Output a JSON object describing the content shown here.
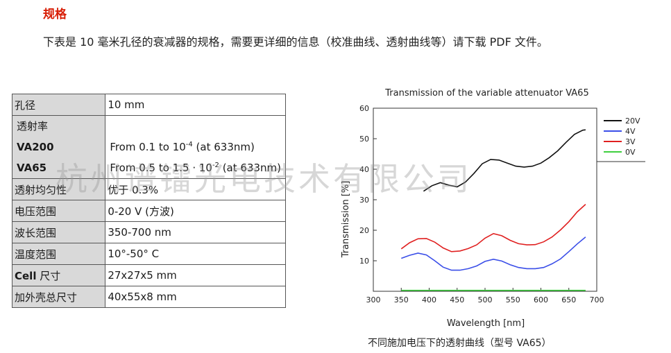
{
  "heading": "规格",
  "intro": "下表是 10 毫米孔径的衰减器的规格，需要更详细的信息（校准曲线、透射曲线等）请下载 PDF 文件。",
  "table": {
    "aperture_label": "孔径",
    "aperture_value": "10 mm",
    "transmission_label": "透射率",
    "va200_label": "VA200",
    "va200_value_prefix": "From 0.1 to 10",
    "va200_value_exp": "-4",
    "va200_value_suffix": " (at 633nm)",
    "va65_label": "VA65",
    "va65_value_prefix": "From 0.5 to 1.5 · 10",
    "va65_value_exp": "-2",
    "va65_value_suffix": " (at 633nm)",
    "uniformity_label": "透射均匀性",
    "uniformity_value": "优于 0.3%",
    "voltage_label": "电压范围",
    "voltage_value": "0-20 V (方波)",
    "wavelength_label": "波长范围",
    "wavelength_value": "350-700 nm",
    "temperature_label": "温度范围",
    "temperature_value": "10°-50° C",
    "cell_label_bold": "Cell",
    "cell_label_rest": " 尺寸",
    "cell_value": "27x27x5 mm",
    "housing_label": "加外壳总尺寸",
    "housing_value": "40x55x8 mm"
  },
  "watermark": "杭州谱镭光电技术有限公司",
  "caption": "不同施加电压下的透射曲线（型号 VA65）",
  "chart_data": {
    "type": "line",
    "title": "Transmission of the variable attenuator VA65",
    "xlabel": "Wavelength [nm]",
    "ylabel": "Transmission [%]",
    "xlim": [
      300,
      700
    ],
    "ylim": [
      0,
      60
    ],
    "xticks": [
      300,
      350,
      400,
      450,
      500,
      550,
      600,
      650,
      700
    ],
    "yticks": [
      10,
      20,
      30,
      40,
      50,
      60
    ],
    "legend_position": "top-right",
    "series": [
      {
        "name": "20V",
        "color": "#111111",
        "x": [
          390,
          405,
          420,
          435,
          450,
          465,
          480,
          495,
          510,
          525,
          540,
          555,
          570,
          585,
          600,
          615,
          630,
          645,
          660,
          675,
          680
        ],
        "y": [
          32.8,
          34.6,
          35.6,
          34.8,
          34.2,
          35.8,
          38.6,
          41.8,
          43.2,
          43.0,
          42.0,
          41.0,
          40.7,
          41.0,
          42.0,
          43.8,
          46.0,
          48.8,
          51.4,
          52.8,
          52.9
        ]
      },
      {
        "name": "4V",
        "color": "#3a4ee8",
        "x": [
          350,
          365,
          380,
          395,
          410,
          425,
          440,
          455,
          470,
          485,
          500,
          515,
          530,
          545,
          560,
          575,
          590,
          605,
          620,
          635,
          650,
          665,
          680
        ],
        "y": [
          10.8,
          11.8,
          12.5,
          11.9,
          10.0,
          7.9,
          6.9,
          6.9,
          7.4,
          8.3,
          9.8,
          10.5,
          9.9,
          8.7,
          7.8,
          7.4,
          7.4,
          7.8,
          9.0,
          10.6,
          13.0,
          15.5,
          17.8
        ]
      },
      {
        "name": "3V",
        "color": "#e02020",
        "x": [
          350,
          365,
          380,
          395,
          410,
          425,
          440,
          455,
          470,
          485,
          500,
          515,
          530,
          545,
          560,
          575,
          590,
          605,
          620,
          635,
          650,
          665,
          680
        ],
        "y": [
          13.9,
          15.9,
          17.2,
          17.3,
          16.1,
          14.2,
          13.0,
          13.2,
          14.0,
          15.2,
          17.4,
          18.9,
          18.2,
          16.7,
          15.6,
          15.2,
          15.3,
          16.2,
          17.8,
          20.1,
          22.8,
          26.0,
          28.5
        ]
      },
      {
        "name": "0V",
        "color": "#3ecf3e",
        "x": [
          350,
          680
        ],
        "y": [
          0.3,
          0.3
        ]
      }
    ]
  }
}
